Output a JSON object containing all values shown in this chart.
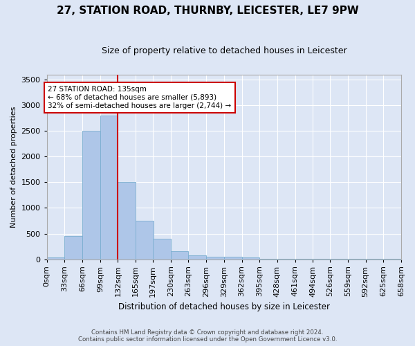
{
  "title": "27, STATION ROAD, THURNBY, LEICESTER, LE7 9PW",
  "subtitle": "Size of property relative to detached houses in Leicester",
  "xlabel": "Distribution of detached houses by size in Leicester",
  "ylabel": "Number of detached properties",
  "bar_color": "#aec6e8",
  "bar_edge_color": "#7aaed0",
  "bg_color": "#dde6f5",
  "fig_color": "#dde6f5",
  "grid_color": "#ffffff",
  "property_line_x": 132,
  "property_line_color": "#cc0000",
  "annotation_line1": "27 STATION ROAD: 135sqm",
  "annotation_line2": "← 68% of detached houses are smaller (5,893)",
  "annotation_line3": "32% of semi-detached houses are larger (2,744) →",
  "annotation_box_color": "#cc0000",
  "footer_line1": "Contains HM Land Registry data © Crown copyright and database right 2024.",
  "footer_line2": "Contains public sector information licensed under the Open Government Licence v3.0.",
  "bin_edges": [
    0,
    33,
    66,
    99,
    132,
    165,
    197,
    230,
    263,
    296,
    329,
    362,
    395,
    428,
    461,
    494,
    526,
    559,
    592,
    625,
    658
  ],
  "bin_labels": [
    "0sqm",
    "33sqm",
    "66sqm",
    "99sqm",
    "132sqm",
    "165sqm",
    "197sqm",
    "230sqm",
    "263sqm",
    "296sqm",
    "329sqm",
    "362sqm",
    "395sqm",
    "428sqm",
    "461sqm",
    "494sqm",
    "526sqm",
    "559sqm",
    "592sqm",
    "625sqm",
    "658sqm"
  ],
  "counts": [
    30,
    450,
    2500,
    2800,
    1500,
    750,
    400,
    150,
    80,
    50,
    50,
    30,
    10,
    5,
    2,
    1,
    1,
    1,
    1,
    1
  ],
  "ylim": [
    0,
    3600
  ],
  "yticks": [
    0,
    500,
    1000,
    1500,
    2000,
    2500,
    3000,
    3500
  ]
}
